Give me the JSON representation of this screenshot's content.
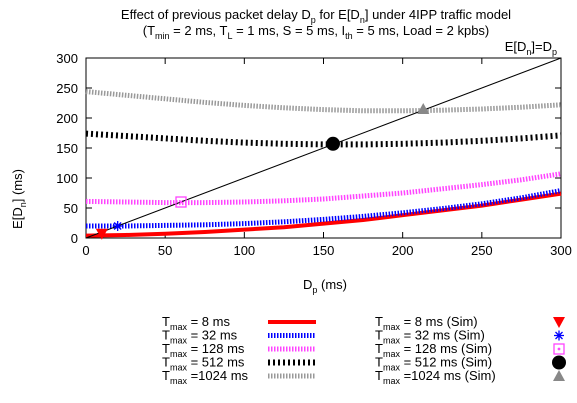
{
  "chart_data": {
    "type": "line",
    "title_line1": {
      "main": "Effect of previous packet delay D",
      "sub1": "p",
      "mid": " for E[D",
      "sub2": "n",
      "end": "] under 4IPP traffic model"
    },
    "title_line2": {
      "open": "(T",
      "tmin_sub": "min",
      "tmin_val": " = 2 ms, T",
      "tl_sub": "L",
      "tl_val": " = 1 ms, S = 5 ms, I",
      "ith_sub": "th",
      "ith_val": " = 5 ms, Load = 2 kpbs)"
    },
    "xlabel": {
      "main": "D",
      "sub": "p",
      "unit": " (ms)"
    },
    "ylabel": {
      "main": "E[D",
      "sub": "n",
      "unit": "] (ms)"
    },
    "xlim": [
      0,
      300
    ],
    "ylim": [
      0,
      300
    ],
    "xticks": [
      "0",
      "50",
      "100",
      "150",
      "200",
      "250",
      "300"
    ],
    "yticks": [
      "0",
      "50",
      "100",
      "150",
      "200",
      "250",
      "300"
    ],
    "grid": false,
    "reference_line": {
      "label_main": "E[D",
      "label_sub1": "n",
      "label_mid": "]=D",
      "label_sub2": "p",
      "x": [
        0,
        300
      ],
      "y": [
        0,
        300
      ],
      "color": "#000000"
    },
    "series": [
      {
        "name": "T_max = 8 ms",
        "label_main": "T",
        "label_sub": "max",
        "label_val": " =     8 ms",
        "color": "#ff0000",
        "style": "solid",
        "x": [
          0,
          25,
          50,
          75,
          100,
          125,
          150,
          175,
          200,
          225,
          250,
          275,
          300
        ],
        "y": [
          4,
          5,
          7,
          10,
          14,
          18,
          24,
          30,
          38,
          46,
          54,
          64,
          74
        ]
      },
      {
        "name": "T_max = 32 ms",
        "label_main": "T",
        "label_sub": "max",
        "label_val": " =   32 ms",
        "color": "#0000ff",
        "style": "dashed",
        "x": [
          0,
          25,
          50,
          75,
          100,
          125,
          150,
          175,
          200,
          225,
          250,
          275,
          300
        ],
        "y": [
          20,
          20,
          21,
          22,
          24,
          27,
          31,
          36,
          42,
          49,
          57,
          67,
          79
        ]
      },
      {
        "name": "T_max = 128 ms",
        "label_main": "T",
        "label_sub": "max",
        "label_val": " = 128 ms",
        "color": "#ff44ff",
        "style": "dashed",
        "x": [
          0,
          25,
          50,
          75,
          100,
          125,
          150,
          175,
          200,
          225,
          250,
          275,
          300
        ],
        "y": [
          61,
          60,
          59,
          59,
          60,
          62,
          65,
          70,
          75,
          82,
          89,
          97,
          107
        ]
      },
      {
        "name": "T_max = 512 ms",
        "label_main": "T",
        "label_sub": "max",
        "label_val": " = 512 ms",
        "color": "#000000",
        "style": "dotted",
        "x": [
          0,
          25,
          50,
          75,
          100,
          125,
          150,
          175,
          200,
          225,
          250,
          275,
          300
        ],
        "y": [
          174,
          170,
          166,
          162,
          159,
          157,
          156,
          156,
          157,
          159,
          162,
          166,
          171
        ]
      },
      {
        "name": "T_max = 1024 ms",
        "label_main": "T",
        "label_sub": "max",
        "label_val": " =1024 ms",
        "color": "#999999",
        "style": "dashed",
        "x": [
          0,
          25,
          50,
          75,
          100,
          125,
          150,
          175,
          200,
          225,
          250,
          275,
          300
        ],
        "y": [
          244,
          238,
          232,
          226,
          221,
          217,
          214,
          212,
          212,
          213,
          215,
          218,
          222
        ]
      }
    ],
    "sim_points": [
      {
        "name": "T_max = 8 ms (Sim)",
        "label_main": "T",
        "label_sub": "max",
        "label_val": " =     8 ms (Sim)",
        "marker": "triangle-down",
        "color": "#ff0000",
        "x": 10,
        "y": 7
      },
      {
        "name": "T_max = 32 ms (Sim)",
        "label_main": "T",
        "label_sub": "max",
        "label_val": " =   32 ms (Sim)",
        "marker": "star",
        "color": "#0000ff",
        "x": 20,
        "y": 20
      },
      {
        "name": "T_max = 128 ms (Sim)",
        "label_main": "T",
        "label_sub": "max",
        "label_val": " = 128 ms (Sim)",
        "marker": "square-dot",
        "color": "#ff44ff",
        "x": 60,
        "y": 60
      },
      {
        "name": "T_max = 512 ms (Sim)",
        "label_main": "T",
        "label_sub": "max",
        "label_val": " = 512 ms (Sim)",
        "marker": "circle",
        "color": "#000000",
        "x": 156,
        "y": 157
      },
      {
        "name": "T_max = 1024 ms (Sim)",
        "label_main": "T",
        "label_sub": "max",
        "label_val": " =1024 ms (Sim)",
        "marker": "triangle-up",
        "color": "#888888",
        "x": 213,
        "y": 215
      }
    ],
    "legend_placement": "below-plot"
  }
}
